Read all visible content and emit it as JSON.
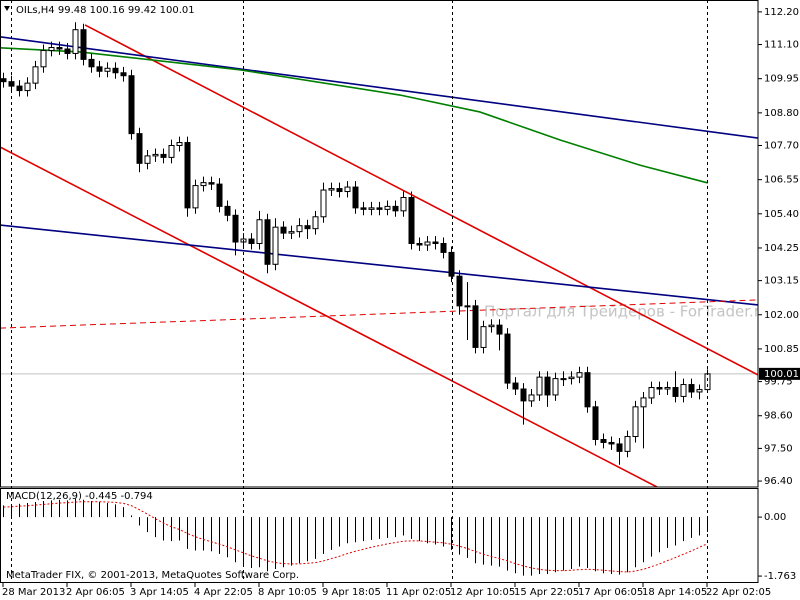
{
  "chart_data": [
    {
      "type": "candlestick",
      "title": "OILs,H4  99.48 100.16 99.42 100.01",
      "watermark": "Портал для Трейдеров - ForTrader.ru",
      "categories": [
        "28 Mar 2013",
        null,
        null,
        null,
        null,
        null,
        null,
        null,
        "2 Apr 06:05",
        null,
        null,
        null,
        null,
        null,
        null,
        null,
        "3 Apr 14:05",
        null,
        null,
        null,
        null,
        null,
        null,
        null,
        "4 Apr 22:05",
        null,
        null,
        null,
        null,
        null,
        null,
        null,
        "8 Apr 10:05",
        null,
        null,
        null,
        null,
        null,
        null,
        null,
        "9 Apr 18:05",
        null,
        null,
        null,
        null,
        null,
        null,
        null,
        "11 Apr 02:05",
        null,
        null,
        null,
        null,
        null,
        null,
        null,
        "12 Apr 10:05",
        null,
        null,
        null,
        null,
        null,
        null,
        null,
        "15 Apr 22:05",
        null,
        null,
        null,
        null,
        null,
        null,
        null,
        "17 Apr 06:05",
        null,
        null,
        null,
        null,
        null,
        null,
        null,
        "18 Apr 14:05",
        null,
        null,
        null,
        null,
        null,
        null,
        null,
        "22 Apr 02:05"
      ],
      "open": [
        109.95,
        109.85,
        109.7,
        109.55,
        109.8,
        110.35,
        110.9,
        111.0,
        110.95,
        110.8,
        111.6,
        110.6,
        110.35,
        110.2,
        110.3,
        110.15,
        110.05,
        108.1,
        107.1,
        107.35,
        107.4,
        107.3,
        107.7,
        107.8,
        105.6,
        106.35,
        106.45,
        106.4,
        105.65,
        105.35,
        104.45,
        104.55,
        104.4,
        105.2,
        103.7,
        104.95,
        104.75,
        104.8,
        105.0,
        104.9,
        105.3,
        106.2,
        106.25,
        106.15,
        106.3,
        105.6,
        105.55,
        105.6,
        105.55,
        105.65,
        105.5,
        105.95,
        104.4,
        104.35,
        104.45,
        104.4,
        104.1,
        103.3,
        102.3,
        102.3,
        100.9,
        101.6,
        101.65,
        101.35,
        99.7,
        99.5,
        99.1,
        99.3,
        99.9,
        99.3,
        99.85,
        99.85,
        99.9,
        100.05,
        98.9,
        97.8,
        97.7,
        97.65,
        97.4,
        97.9,
        98.9,
        99.2,
        99.55,
        99.5,
        99.55,
        99.25,
        99.65,
        99.4,
        99.48
      ],
      "high": [
        110.15,
        110.05,
        109.9,
        110.0,
        110.55,
        111.1,
        111.2,
        111.2,
        111.15,
        111.85,
        111.8,
        110.8,
        110.55,
        110.5,
        110.5,
        110.35,
        110.25,
        108.3,
        107.55,
        107.6,
        107.6,
        107.9,
        108.0,
        108.0,
        106.55,
        106.65,
        106.65,
        106.6,
        105.85,
        105.55,
        104.75,
        104.75,
        105.5,
        105.4,
        105.25,
        105.15,
        105.0,
        105.25,
        105.2,
        105.5,
        106.45,
        106.45,
        106.45,
        106.5,
        106.5,
        105.8,
        105.8,
        105.8,
        105.85,
        105.85,
        106.15,
        106.15,
        104.6,
        104.65,
        104.65,
        104.6,
        104.3,
        103.5,
        103.1,
        102.5,
        101.8,
        101.85,
        101.85,
        101.55,
        99.9,
        99.7,
        99.5,
        100.1,
        100.1,
        100.05,
        100.1,
        100.1,
        100.25,
        100.25,
        99.1,
        98.0,
        97.9,
        97.85,
        98.1,
        99.1,
        99.4,
        99.75,
        99.75,
        99.75,
        100.1,
        99.85,
        99.85,
        99.65,
        100.16
      ],
      "low": [
        109.65,
        109.5,
        109.35,
        109.35,
        109.6,
        110.15,
        110.7,
        110.75,
        110.6,
        110.6,
        110.4,
        110.15,
        110.0,
        110.0,
        109.95,
        109.85,
        107.9,
        106.8,
        106.9,
        107.15,
        107.1,
        107.1,
        107.5,
        105.3,
        105.4,
        106.15,
        106.2,
        105.45,
        105.15,
        104.0,
        104.25,
        104.2,
        104.2,
        103.4,
        103.5,
        104.55,
        104.55,
        104.6,
        104.55,
        104.7,
        105.1,
        106.0,
        105.95,
        105.95,
        105.4,
        105.35,
        105.35,
        105.35,
        105.35,
        105.3,
        105.3,
        104.2,
        104.15,
        104.15,
        104.2,
        103.9,
        103.1,
        102.0,
        101.15,
        100.7,
        100.7,
        101.4,
        100.8,
        99.5,
        99.3,
        98.3,
        98.9,
        99.1,
        98.9,
        99.1,
        99.6,
        99.65,
        99.7,
        98.7,
        97.6,
        97.5,
        97.45,
        96.95,
        97.2,
        97.7,
        97.5,
        99.0,
        99.3,
        99.3,
        99.05,
        99.05,
        99.2,
        99.15,
        99.42
      ],
      "close": [
        109.85,
        109.7,
        109.55,
        109.8,
        110.35,
        110.9,
        111.0,
        110.95,
        110.8,
        111.6,
        110.6,
        110.35,
        110.2,
        110.3,
        110.15,
        110.05,
        108.1,
        107.1,
        107.35,
        107.4,
        107.3,
        107.7,
        107.8,
        105.6,
        106.35,
        106.45,
        106.4,
        105.65,
        105.35,
        104.45,
        104.55,
        104.4,
        105.2,
        103.7,
        104.95,
        104.75,
        104.8,
        105.0,
        104.9,
        105.3,
        106.2,
        106.25,
        106.15,
        106.3,
        105.6,
        105.55,
        105.6,
        105.55,
        105.65,
        105.5,
        105.95,
        104.4,
        104.35,
        104.45,
        104.4,
        104.1,
        103.3,
        102.3,
        102.3,
        100.9,
        101.6,
        101.65,
        101.35,
        99.7,
        99.5,
        99.1,
        99.3,
        99.9,
        99.3,
        99.85,
        99.85,
        99.9,
        100.05,
        98.9,
        97.8,
        97.7,
        97.65,
        97.4,
        97.9,
        98.9,
        99.2,
        99.55,
        99.5,
        99.55,
        99.25,
        99.65,
        99.4,
        99.48,
        100.01
      ],
      "up_color": "#ffffff",
      "down_color": "#000000",
      "outline_color": "#000000",
      "current_price": 100.01,
      "ylim": [
        96.2,
        112.6
      ],
      "yticks": [
        {
          "value": 112.2,
          "label": "112.20"
        },
        {
          "value": 111.1,
          "label": "111.10"
        },
        109.95,
        {
          "value": 108.8,
          "label": "108.80"
        },
        {
          "value": 107.7,
          "label": "107.70"
        },
        106.55,
        {
          "value": 105.4,
          "label": "105.40"
        },
        104.25,
        103.15,
        {
          "value": 102,
          "label": "102.00"
        },
        100.85,
        99.75,
        {
          "value": 98.6,
          "label": "98.60"
        },
        {
          "value": 97.5,
          "label": "97.50"
        },
        {
          "value": 96.4,
          "label": "96.40"
        }
      ],
      "trendlines": [
        {
          "color": "#e00000",
          "x": [
            10.25,
            94.4
          ],
          "y": [
            111.76,
            99.97
          ]
        },
        {
          "color": "#e00000",
          "x": [
            -0.375,
            81.75
          ],
          "y": [
            107.65,
            96.2
          ]
        },
        {
          "color": "#000080",
          "x": [
            -0.375,
            94.4
          ],
          "y": [
            111.36,
            107.95
          ]
        },
        {
          "color": "#000080",
          "x": [
            -0.375,
            94.4
          ],
          "y": [
            105.02,
            102.33
          ]
        },
        {
          "color": "#e00000",
          "dashed": true,
          "x": [
            -0.375,
            94.4
          ],
          "y": [
            101.55,
            102.5
          ]
        },
        {
          "color": "#008000",
          "x": [
            -0.375,
            9.6,
            29.6,
            49.6,
            59.6,
            69.6,
            79.6,
            88.1
          ],
          "y": [
            110.99,
            110.85,
            110.25,
            109.4,
            108.83,
            107.89,
            107.04,
            106.44
          ]
        }
      ]
    },
    {
      "type": "macd",
      "title": "MACD(12,26,9) -0.445 -0.794",
      "values": [
        0.35,
        0.38,
        0.4,
        0.42,
        0.45,
        0.48,
        0.5,
        0.52,
        0.5,
        0.55,
        0.52,
        0.48,
        0.45,
        0.42,
        0.38,
        0.3,
        0.05,
        -0.25,
        -0.45,
        -0.6,
        -0.7,
        -0.72,
        -0.7,
        -0.95,
        -1.0,
        -1.0,
        -1.02,
        -1.1,
        -1.2,
        -1.35,
        -1.45,
        -1.52,
        -1.5,
        -1.62,
        -1.55,
        -1.5,
        -1.45,
        -1.38,
        -1.32,
        -1.25,
        -1.1,
        -0.98,
        -0.88,
        -0.78,
        -0.75,
        -0.72,
        -0.68,
        -0.65,
        -0.62,
        -0.6,
        -0.55,
        -0.65,
        -0.72,
        -0.78,
        -0.82,
        -0.88,
        -0.98,
        -1.12,
        -1.22,
        -1.38,
        -1.42,
        -1.45,
        -1.48,
        -1.6,
        -1.68,
        -1.75,
        -1.75,
        -1.7,
        -1.7,
        -1.65,
        -1.6,
        -1.55,
        -1.48,
        -1.52,
        -1.62,
        -1.68,
        -1.7,
        -1.72,
        -1.65,
        -1.5,
        -1.35,
        -1.18,
        -1.05,
        -0.92,
        -0.85,
        -0.72,
        -0.62,
        -0.55,
        -0.445
      ],
      "signal": [
        0.3,
        0.31,
        0.33,
        0.34,
        0.36,
        0.38,
        0.4,
        0.42,
        0.43,
        0.45,
        0.46,
        0.46,
        0.46,
        0.45,
        0.44,
        0.41,
        0.34,
        0.22,
        0.09,
        -0.05,
        -0.18,
        -0.29,
        -0.37,
        -0.49,
        -0.59,
        -0.67,
        -0.74,
        -0.81,
        -0.89,
        -0.98,
        -1.07,
        -1.16,
        -1.23,
        -1.31,
        -1.36,
        -1.39,
        -1.4,
        -1.4,
        -1.38,
        -1.36,
        -1.31,
        -1.24,
        -1.17,
        -1.09,
        -1.02,
        -0.96,
        -0.9,
        -0.85,
        -0.8,
        -0.76,
        -0.72,
        -0.71,
        -0.71,
        -0.73,
        -0.75,
        -0.77,
        -0.81,
        -0.87,
        -0.94,
        -1.03,
        -1.11,
        -1.18,
        -1.24,
        -1.31,
        -1.39,
        -1.46,
        -1.52,
        -1.56,
        -1.59,
        -1.6,
        -1.6,
        -1.59,
        -1.57,
        -1.56,
        -1.57,
        -1.59,
        -1.61,
        -1.63,
        -1.64,
        -1.61,
        -1.56,
        -1.48,
        -1.4,
        -1.3,
        -1.21,
        -1.11,
        -1.01,
        -0.9,
        -0.794
      ],
      "color": "#000000",
      "signal_color": "#e00000",
      "ylim": [
        -1.97,
        0.87
      ],
      "yticks": [
        {
          "value": 0,
          "label": "0.00"
        },
        -1.763
      ]
    }
  ],
  "footer": "MetaTrader FIX, © 2001-2013, MetaQuotes Software Corp."
}
